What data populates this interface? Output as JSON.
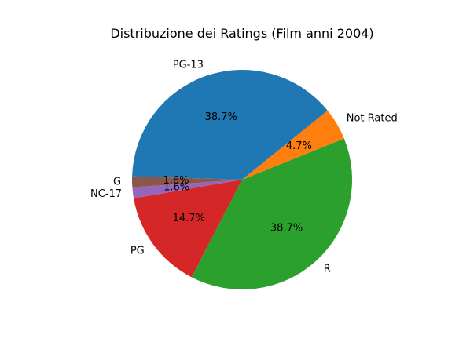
{
  "chart_data": {
    "type": "pie",
    "title": "Distribuzione dei Ratings (Film anni 2004)",
    "slices": [
      {
        "label": "R",
        "percent": 38.7,
        "pct_label": "38.7%",
        "color": "#2ca02c"
      },
      {
        "label": "PG",
        "percent": 14.7,
        "pct_label": "14.7%",
        "color": "#d62728"
      },
      {
        "label": "NC-17",
        "percent": 1.6,
        "pct_label": "1.6%",
        "color": "#9467bd"
      },
      {
        "label": "G",
        "percent": 1.6,
        "pct_label": "1.6%",
        "color": "#8c564b"
      },
      {
        "label": "PG-13",
        "percent": 38.7,
        "pct_label": "38.7%",
        "color": "#1f77b4"
      },
      {
        "label": "Not Rated",
        "percent": 4.7,
        "pct_label": "4.7%",
        "color": "#ff7f0e"
      }
    ]
  }
}
